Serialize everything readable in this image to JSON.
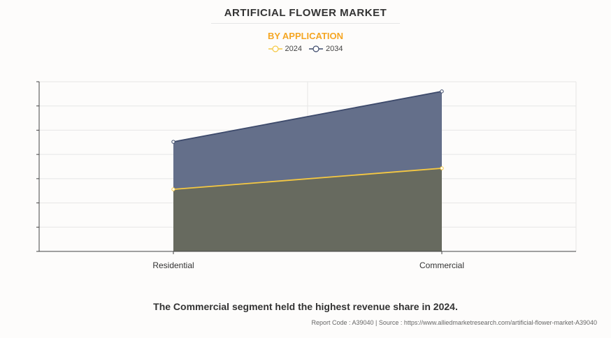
{
  "header": {
    "title": "ARTIFICIAL FLOWER MARKET",
    "subtitle": "BY APPLICATION"
  },
  "legend": [
    {
      "label": "2024",
      "color": "#f5c842"
    },
    {
      "label": "2034",
      "color": "#3d4a6b"
    }
  ],
  "caption": "The Commercial segment held the highest revenue share in 2024.",
  "footer": "Report Code : A39040  |  Source : https://www.alliedmarketresearch.com/artificial-flower-market-A39040",
  "chart_data": {
    "type": "area",
    "title": "ARTIFICIAL FLOWER MARKET",
    "subtitle": "BY APPLICATION",
    "categories": [
      "Residential",
      "Commercial"
    ],
    "series": [
      {
        "name": "2024",
        "values": [
          2.56,
          3.43
        ],
        "color": "#f5c842"
      },
      {
        "name": "2034",
        "values": [
          4.52,
          6.6
        ],
        "color": "#3d4a6b"
      }
    ],
    "xlabel": "",
    "ylabel": "",
    "ylim": [
      0,
      7
    ],
    "y_tick_labels_shown": false,
    "grid": true,
    "legend_position": "top"
  }
}
